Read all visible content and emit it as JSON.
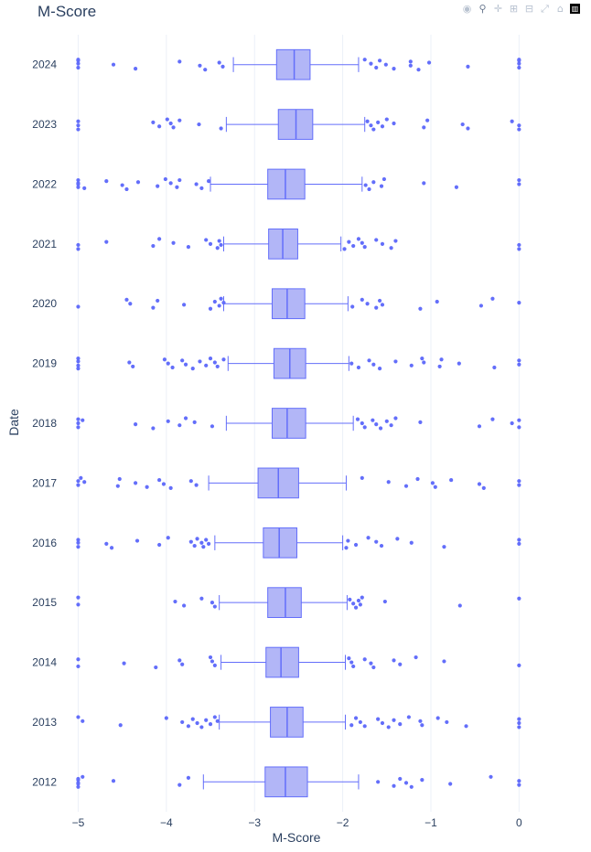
{
  "chart_data": {
    "type": "box",
    "orientation": "horizontal",
    "title": "M-Score",
    "xlabel": "M-Score",
    "ylabel": "Date",
    "xlim": [
      -5.15,
      0.1
    ],
    "x_ticks": [
      -5,
      -4,
      -3,
      -2,
      -1,
      0
    ],
    "x_tick_labels": [
      "−5",
      "−4",
      "−3",
      "−2",
      "−1",
      "0"
    ],
    "categories": [
      "2024",
      "2023",
      "2022",
      "2021",
      "2020",
      "2019",
      "2018",
      "2017",
      "2016",
      "2015",
      "2014",
      "2013",
      "2012"
    ],
    "grid": true,
    "legend": false,
    "colors": {
      "box_fill": "#b2b6f7",
      "box_line": "#636efa",
      "point": "#636efa",
      "grid": "#ebf0f8",
      "text": "#2a3f5f"
    },
    "boxes": [
      {
        "year": "2024",
        "lowerfence": -3.24,
        "q1": -2.75,
        "median": -2.55,
        "q3": -2.37,
        "upperfence": -1.82,
        "outliers": [
          -5,
          -5,
          -5,
          -5,
          -4.6,
          -4.35,
          -3.85,
          -3.62,
          -3.56,
          -3.4,
          -3.36,
          -1.75,
          -1.68,
          -1.62,
          -1.58,
          -1.51,
          -1.42,
          -1.23,
          -1.23,
          -1.14,
          -1.02,
          -0.58,
          0,
          0,
          0,
          0
        ]
      },
      {
        "year": "2023",
        "lowerfence": -3.32,
        "q1": -2.73,
        "median": -2.53,
        "q3": -2.34,
        "upperfence": -1.75,
        "outliers": [
          -5,
          -5,
          -5,
          -4.15,
          -4.08,
          -3.99,
          -3.95,
          -3.92,
          -3.85,
          -3.63,
          -3.38,
          -1.72,
          -1.68,
          -1.65,
          -1.6,
          -1.55,
          -1.5,
          -1.42,
          -1.08,
          -1.04,
          -0.64,
          -0.58,
          -0.08,
          0,
          0
        ]
      },
      {
        "year": "2022",
        "lowerfence": -3.5,
        "q1": -2.85,
        "median": -2.65,
        "q3": -2.43,
        "upperfence": -1.78,
        "outliers": [
          -5,
          -5,
          -5,
          -5,
          -4.93,
          -4.68,
          -4.5,
          -4.45,
          -4.32,
          -4.1,
          -4.01,
          -3.95,
          -3.88,
          -3.85,
          -3.66,
          -3.6,
          -3.52,
          -1.74,
          -1.7,
          -1.65,
          -1.56,
          -1.53,
          -1.08,
          -0.71,
          0,
          0
        ]
      },
      {
        "year": "2021",
        "lowerfence": -3.35,
        "q1": -2.84,
        "median": -2.68,
        "q3": -2.51,
        "upperfence": -2.02,
        "outliers": [
          -5,
          -5,
          -4.68,
          -4.15,
          -4.08,
          -3.92,
          -3.75,
          -3.55,
          -3.5,
          -3.42,
          -3.4,
          -3.38,
          -1.98,
          -1.93,
          -1.88,
          -1.82,
          -1.78,
          -1.75,
          -1.62,
          -1.55,
          -1.45,
          -1.4,
          0,
          0
        ]
      },
      {
        "year": "2020",
        "lowerfence": -3.35,
        "q1": -2.8,
        "median": -2.63,
        "q3": -2.43,
        "upperfence": -1.94,
        "outliers": [
          -5,
          -4.45,
          -4.41,
          -4.15,
          -4.1,
          -3.8,
          -3.5,
          -3.45,
          -3.4,
          -3.38,
          -3.35,
          -1.89,
          -1.78,
          -1.72,
          -1.62,
          -1.58,
          -1.55,
          -1.12,
          -0.93,
          -0.43,
          -0.3,
          0
        ]
      },
      {
        "year": "2019",
        "lowerfence": -3.3,
        "q1": -2.78,
        "median": -2.6,
        "q3": -2.42,
        "upperfence": -1.93,
        "outliers": [
          -5,
          -5,
          -5,
          -5,
          -4.42,
          -4.38,
          -4.02,
          -3.98,
          -3.93,
          -3.82,
          -3.78,
          -3.7,
          -3.62,
          -3.55,
          -3.5,
          -3.45,
          -3.42,
          -3.35,
          -1.9,
          -1.82,
          -1.7,
          -1.65,
          -1.58,
          -1.4,
          -1.22,
          -1.1,
          -1.08,
          -0.9,
          -0.88,
          -0.68,
          -0.28,
          0,
          0
        ]
      },
      {
        "year": "2018",
        "lowerfence": -3.32,
        "q1": -2.8,
        "median": -2.63,
        "q3": -2.42,
        "upperfence": -1.88,
        "outliers": [
          -5,
          -5,
          -5,
          -4.95,
          -4.35,
          -4.15,
          -3.98,
          -3.85,
          -3.78,
          -3.68,
          -3.48,
          -1.83,
          -1.78,
          -1.75,
          -1.66,
          -1.62,
          -1.57,
          -1.5,
          -1.45,
          -1.4,
          -1.12,
          -0.45,
          -0.3,
          -0.08,
          0,
          0
        ]
      },
      {
        "year": "2017",
        "lowerfence": -3.52,
        "q1": -2.96,
        "median": -2.73,
        "q3": -2.5,
        "upperfence": -1.96,
        "outliers": [
          -5,
          -5,
          -4.97,
          -4.93,
          -4.55,
          -4.53,
          -4.35,
          -4.22,
          -4.08,
          -4.03,
          -3.95,
          -3.72,
          -3.66,
          -1.78,
          -1.48,
          -1.28,
          -1.15,
          -0.98,
          -0.95,
          -0.77,
          -0.45,
          -0.4,
          0,
          0
        ]
      },
      {
        "year": "2016",
        "lowerfence": -3.45,
        "q1": -2.9,
        "median": -2.72,
        "q3": -2.52,
        "upperfence": -2,
        "outliers": [
          -5,
          -5,
          -5,
          -4.68,
          -4.62,
          -4.33,
          -4.08,
          -3.98,
          -3.72,
          -3.68,
          -3.65,
          -3.6,
          -3.58,
          -3.55,
          -3.52,
          -1.96,
          -1.94,
          -1.85,
          -1.71,
          -1.62,
          -1.56,
          -1.38,
          -1.22,
          -0.85,
          0,
          0
        ]
      },
      {
        "year": "2015",
        "lowerfence": -3.4,
        "q1": -2.85,
        "median": -2.65,
        "q3": -2.47,
        "upperfence": -1.95,
        "outliers": [
          -5,
          -5,
          -3.9,
          -3.8,
          -3.6,
          -3.48,
          -3.45,
          -1.92,
          -1.88,
          -1.85,
          -1.82,
          -1.8,
          -1.78,
          -1.52,
          -0.67,
          0
        ]
      },
      {
        "year": "2014",
        "lowerfence": -3.38,
        "q1": -2.87,
        "median": -2.7,
        "q3": -2.5,
        "upperfence": -1.97,
        "outliers": [
          -5,
          -5,
          -4.48,
          -4.12,
          -3.85,
          -3.82,
          -3.5,
          -3.48,
          -3.45,
          -1.93,
          -1.9,
          -1.88,
          -1.75,
          -1.68,
          -1.65,
          -1.42,
          -1.35,
          -1.17,
          -0.85,
          0
        ]
      },
      {
        "year": "2013",
        "lowerfence": -3.4,
        "q1": -2.82,
        "median": -2.63,
        "q3": -2.45,
        "upperfence": -1.97,
        "outliers": [
          -5,
          -4.95,
          -4.52,
          -4.0,
          -3.82,
          -3.75,
          -3.7,
          -3.65,
          -3.6,
          -3.55,
          -3.5,
          -3.45,
          -3.42,
          -1.9,
          -1.85,
          -1.8,
          -1.75,
          -1.6,
          -1.55,
          -1.48,
          -1.42,
          -1.35,
          -1.25,
          -1.12,
          -1.1,
          -0.92,
          -0.82,
          -0.6,
          0,
          0,
          0
        ]
      },
      {
        "year": "2012",
        "lowerfence": -3.58,
        "q1": -2.88,
        "median": -2.65,
        "q3": -2.4,
        "upperfence": -1.82,
        "outliers": [
          -5,
          -5,
          -5,
          -5,
          -5,
          -4.95,
          -4.6,
          -3.85,
          -3.75,
          -1.6,
          -1.42,
          -1.35,
          -1.28,
          -1.22,
          -1.1,
          -0.78,
          -0.32,
          0,
          0
        ]
      }
    ]
  },
  "modebar": {
    "icons": [
      "camera-icon",
      "zoom-icon",
      "pan-icon",
      "zoom-in-icon",
      "zoom-out-icon",
      "autoscale-icon",
      "home-icon",
      "plotly-logo-icon"
    ]
  }
}
